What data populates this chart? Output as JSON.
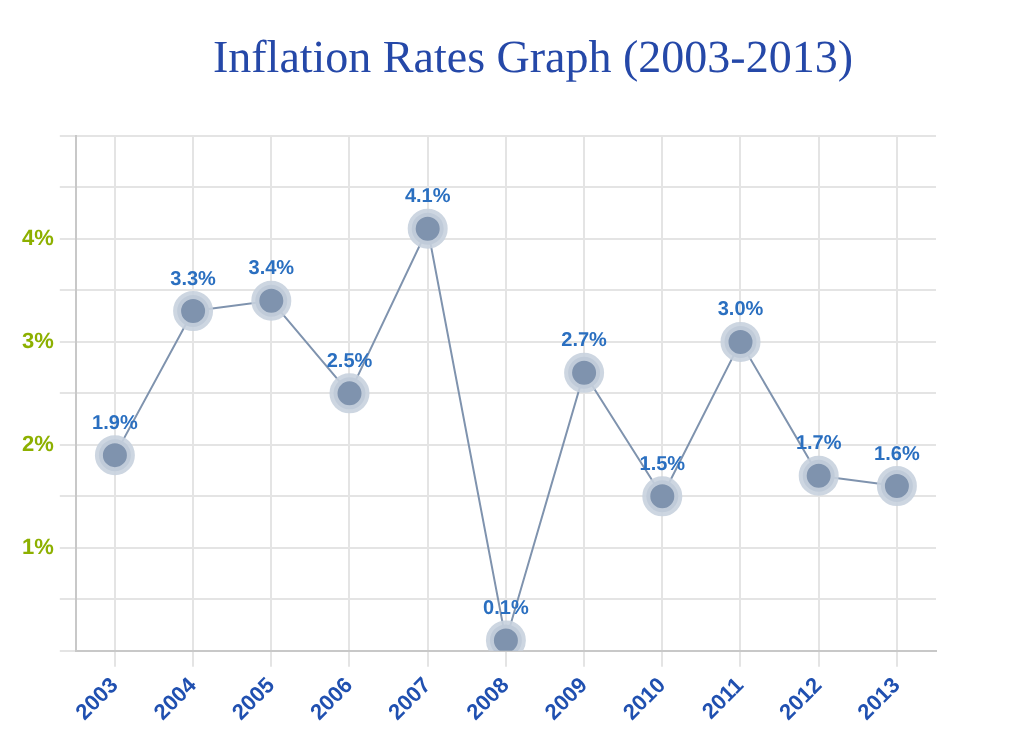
{
  "chart_data": {
    "type": "line",
    "title": "Inflation Rates Graph (2003-2013)",
    "categories": [
      "2003",
      "2004",
      "2005",
      "2006",
      "2007",
      "2008",
      "2009",
      "2010",
      "2011",
      "2012",
      "2013"
    ],
    "series": [
      {
        "color": "#7f93ae",
        "values": [
          1.9,
          3.3,
          3.4,
          2.5,
          4.1,
          0.1,
          2.7,
          1.5,
          3.0,
          1.7,
          1.6
        ],
        "value_labels": [
          "1.9%",
          "3.3%",
          "3.4%",
          "2.5%",
          "4.1%",
          "0.1%",
          "2.7%",
          "1.5%",
          "3.0%",
          "1.7%",
          "1.6%"
        ]
      }
    ],
    "ylim": [
      0,
      5
    ],
    "yticks": [
      {
        "value": 0,
        "label": null
      },
      {
        "value": 0.5,
        "label": null
      },
      {
        "value": 1,
        "label": "1%"
      },
      {
        "value": 1.5,
        "label": null
      },
      {
        "value": 2,
        "label": "2%"
      },
      {
        "value": 2.5,
        "label": null
      },
      {
        "value": 3,
        "label": "3%"
      },
      {
        "value": 3.5,
        "label": null
      },
      {
        "value": 4,
        "label": "4%"
      },
      {
        "value": 4.5,
        "label": null
      },
      {
        "value": 5,
        "label": null
      }
    ],
    "grid": true,
    "marker": "circle",
    "line_style": "solid",
    "legend": false
  }
}
